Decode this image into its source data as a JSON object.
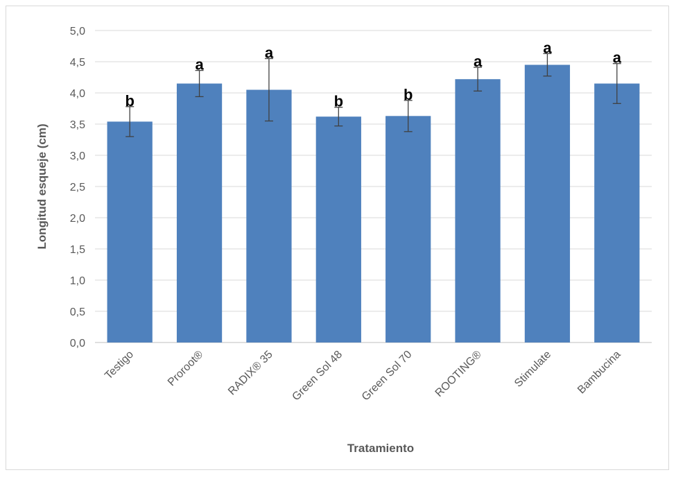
{
  "chart_data": {
    "type": "bar",
    "title": "",
    "xlabel": "Tratamiento",
    "ylabel": "Longitud esqueje (cm)",
    "ylim": [
      0,
      5
    ],
    "yticks": [
      "0,0",
      "0,5",
      "1,0",
      "1,5",
      "2,0",
      "2,5",
      "3,0",
      "3,5",
      "4,0",
      "4,5",
      "5,0"
    ],
    "categories": [
      "Testigo",
      "Proroot®",
      "RADIX® 35",
      "Green Sol 48",
      "Green Sol 70",
      "ROOTING®",
      "Stimulate",
      "Bambucina"
    ],
    "values": [
      3.54,
      4.15,
      4.05,
      3.62,
      3.63,
      4.22,
      4.45,
      4.15
    ],
    "error": [
      0.24,
      0.21,
      0.5,
      0.15,
      0.25,
      0.19,
      0.18,
      0.32
    ],
    "significance": [
      "b",
      "a",
      "a",
      "b",
      "b",
      "a",
      "a",
      "a"
    ],
    "grid": true,
    "legend": "none",
    "colors": {
      "bar": "#4f81bd",
      "grid": "#d9d9d9",
      "axis": "#bfbfbf",
      "error": "#404040"
    }
  }
}
